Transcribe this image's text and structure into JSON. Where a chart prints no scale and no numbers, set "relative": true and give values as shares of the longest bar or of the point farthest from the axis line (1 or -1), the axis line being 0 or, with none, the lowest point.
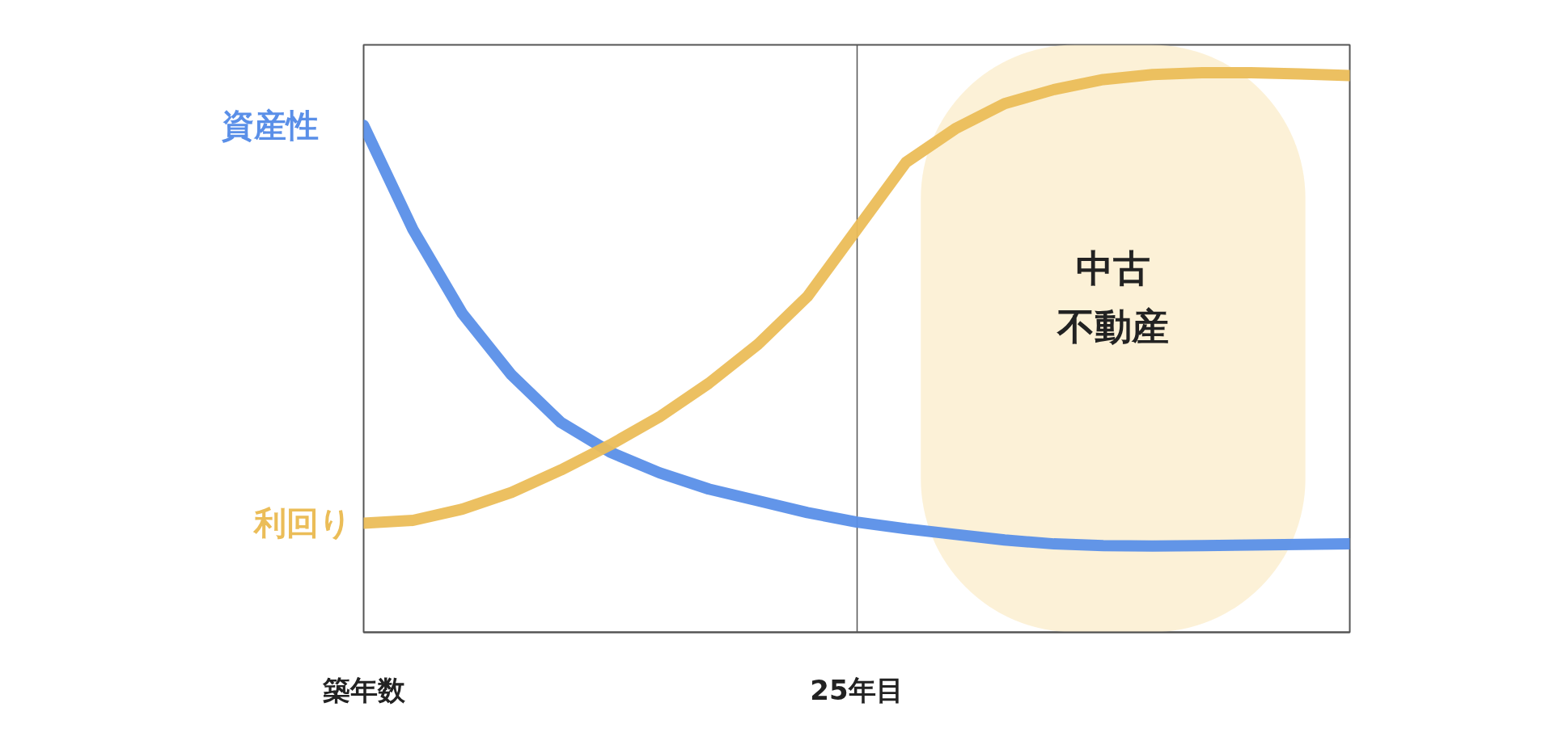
{
  "chart_data": {
    "type": "line",
    "relative": true,
    "legend": false,
    "grid": "x",
    "categories": [
      "築年数",
      null,
      null,
      null,
      null,
      null,
      null,
      null,
      null,
      null,
      "25年目",
      null,
      null,
      null,
      null,
      null,
      null,
      null,
      null,
      null,
      null
    ],
    "annotations": [
      "中古",
      "不動産"
    ],
    "series": [
      {
        "name": "資産性",
        "color": "#5a8fe8",
        "values": [
          0.906,
          0.72,
          0.57,
          0.46,
          0.375,
          0.322,
          0.285,
          0.256,
          0.235,
          0.214,
          0.197,
          0.185,
          0.175,
          0.165,
          0.158,
          0.155,
          0.154,
          0.155,
          0.156,
          0.157,
          0.158
        ]
      },
      {
        "name": "利回り",
        "color": "#ebbd58",
        "values": [
          0.195,
          0.2,
          0.22,
          0.25,
          0.29,
          0.335,
          0.385,
          0.445,
          0.515,
          0.6,
          0.72,
          0.84,
          0.9,
          0.945,
          0.97,
          0.988,
          0.997,
          1.0,
          1.0,
          0.998,
          0.995
        ]
      }
    ]
  }
}
